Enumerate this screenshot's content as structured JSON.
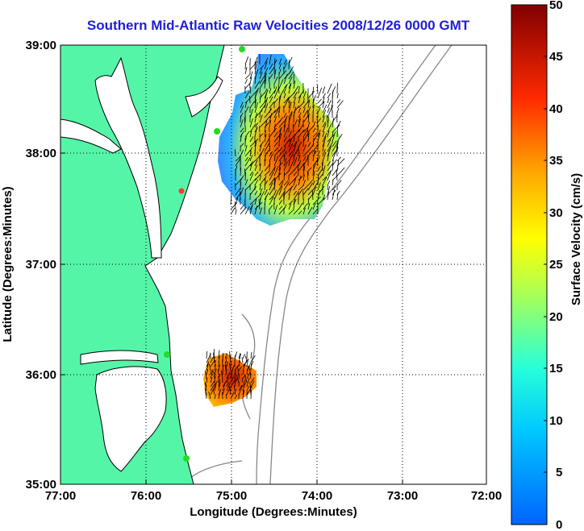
{
  "title": "Southern Mid-Atlantic Raw Velocities 2008/12/26 0000 GMT",
  "axes": {
    "xlabel": "Longitude (Degrees:Minutes)",
    "ylabel": "Latitude (Degrees:Minutes)",
    "xticks": [
      "77:00",
      "76:00",
      "75:00",
      "74:00",
      "73:00",
      "72:00"
    ],
    "yticks": [
      "39:00",
      "38:00",
      "37:00",
      "36:00",
      "35:00"
    ],
    "grid": "dotted"
  },
  "colorbar": {
    "label": "Surface Velocity (cm/s)",
    "ticks": [
      "50",
      "45",
      "40",
      "35",
      "30",
      "25",
      "20",
      "15",
      "10",
      "5",
      "0"
    ],
    "range": [
      0,
      50
    ],
    "colormap": "jet"
  },
  "colors": {
    "land": "#55f5a8",
    "coast": "#000000",
    "bathymetry": "#888888",
    "title": "#1f1fd6",
    "station": "#22dd22",
    "station_inactive": "#ff3a2a"
  },
  "chart_data": {
    "type": "heatmap",
    "x_range": [
      -77,
      -72
    ],
    "y_range": [
      35,
      39
    ],
    "regions": [
      {
        "name": "",
        "approx_speed_range_cm_s": [
          5,
          50
        ]
      },
      {
        "name": "",
        "approx_speed_range_cm_s": [
          30,
          45
        ]
      }
    ]
  }
}
